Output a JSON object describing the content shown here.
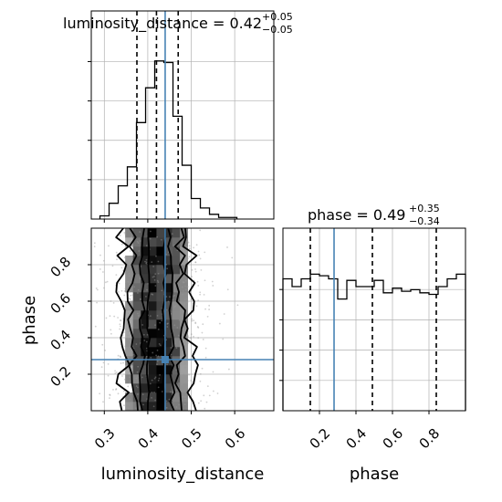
{
  "chart_data": [
    {
      "type": "histogram",
      "panel": "luminosity_distance marginal",
      "title": {
        "name": "luminosity_distance",
        "value": "0.42",
        "plus": "+0.05",
        "minus": "−0.05"
      },
      "x_range": [
        0.27,
        0.69
      ],
      "bin_edges": [
        0.29,
        0.311,
        0.332,
        0.353,
        0.374,
        0.395,
        0.416,
        0.437,
        0.458,
        0.479,
        0.5,
        0.521,
        0.542,
        0.563,
        0.584,
        0.605
      ],
      "counts": [
        0.02,
        0.1,
        0.21,
        0.33,
        0.61,
        0.83,
        1.0,
        0.99,
        0.65,
        0.34,
        0.13,
        0.07,
        0.03,
        0.01,
        0.01
      ],
      "quantiles": [
        0.375,
        0.42,
        0.47
      ],
      "truth": 0.44,
      "xticks": [
        "0.3",
        "0.4",
        "0.5",
        "0.6"
      ],
      "xtick_values": [
        0.3,
        0.4,
        0.5,
        0.6
      ],
      "grid": true
    },
    {
      "type": "histogram",
      "panel": "phase marginal",
      "title": {
        "name": "phase",
        "value": "0.49",
        "plus": "+0.35",
        "minus": "−0.34"
      },
      "x_range": [
        0.0,
        1.0
      ],
      "bin_edges": [
        0.0,
        0.05,
        0.1,
        0.15,
        0.2,
        0.25,
        0.3,
        0.35,
        0.4,
        0.45,
        0.5,
        0.55,
        0.6,
        0.65,
        0.7,
        0.75,
        0.8,
        0.85,
        0.9,
        0.95,
        1.0
      ],
      "counts": [
        0.85,
        0.8,
        0.85,
        0.88,
        0.87,
        0.85,
        0.72,
        0.84,
        0.8,
        0.8,
        0.84,
        0.76,
        0.79,
        0.77,
        0.78,
        0.76,
        0.75,
        0.8,
        0.85,
        0.88
      ],
      "quantiles": [
        0.15,
        0.49,
        0.84
      ],
      "truth": 0.28,
      "xticks": [
        "0.2",
        "0.4",
        "0.6",
        "0.8"
      ],
      "xtick_values": [
        0.2,
        0.4,
        0.6,
        0.8
      ],
      "xlabel": "phase",
      "grid": true
    },
    {
      "type": "scatter",
      "panel": "2D posterior phase vs luminosity_distance",
      "xlabel": "luminosity_distance",
      "ylabel": "phase",
      "x_range": [
        0.27,
        0.69
      ],
      "y_range": [
        0.0,
        1.0
      ],
      "xticks": [
        "0.3",
        "0.4",
        "0.5",
        "0.6"
      ],
      "xtick_values": [
        0.3,
        0.4,
        0.5,
        0.6
      ],
      "yticks": [
        "0.2",
        "0.4",
        "0.6",
        "0.8"
      ],
      "ytick_values": [
        0.2,
        0.4,
        0.6,
        0.8
      ],
      "x_center": 0.42,
      "x_sigma": 0.05,
      "contour_half_widths": [
        0.078,
        0.055,
        0.034,
        0.018
      ],
      "truth": {
        "x": 0.44,
        "y": 0.28
      },
      "grid": true
    }
  ],
  "colors": {
    "line": "#000000",
    "truth": "#4682b4",
    "grid": "#b0b0b0",
    "points": "#9a9a9a"
  }
}
